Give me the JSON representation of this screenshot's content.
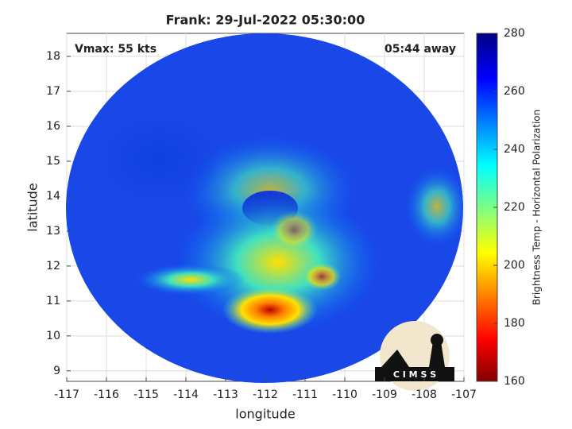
{
  "chart_data": {
    "type": "map",
    "title": "Frank: 29-Jul-2022 05:30:00",
    "annotations": [
      "Vmax: 55 kts",
      "05:44 away"
    ],
    "x_label": "longitude",
    "y_label": "latitude",
    "xlim": [
      -117,
      -107
    ],
    "xticks": [
      -117,
      -116,
      -115,
      -114,
      -113,
      -112,
      -111,
      -110,
      -109,
      -108,
      -107
    ],
    "ylim": [
      8.7,
      18.66
    ],
    "yticks": [
      9,
      10,
      11,
      12,
      13,
      14,
      15,
      16,
      17,
      18
    ],
    "grid": true,
    "colorbar": {
      "label": "Brightness Temp - Horizontal Polarization",
      "lim": [
        160,
        280
      ],
      "ticks": [
        160,
        180,
        200,
        220,
        240,
        260,
        280
      ]
    },
    "logo": "C I M S S"
  }
}
